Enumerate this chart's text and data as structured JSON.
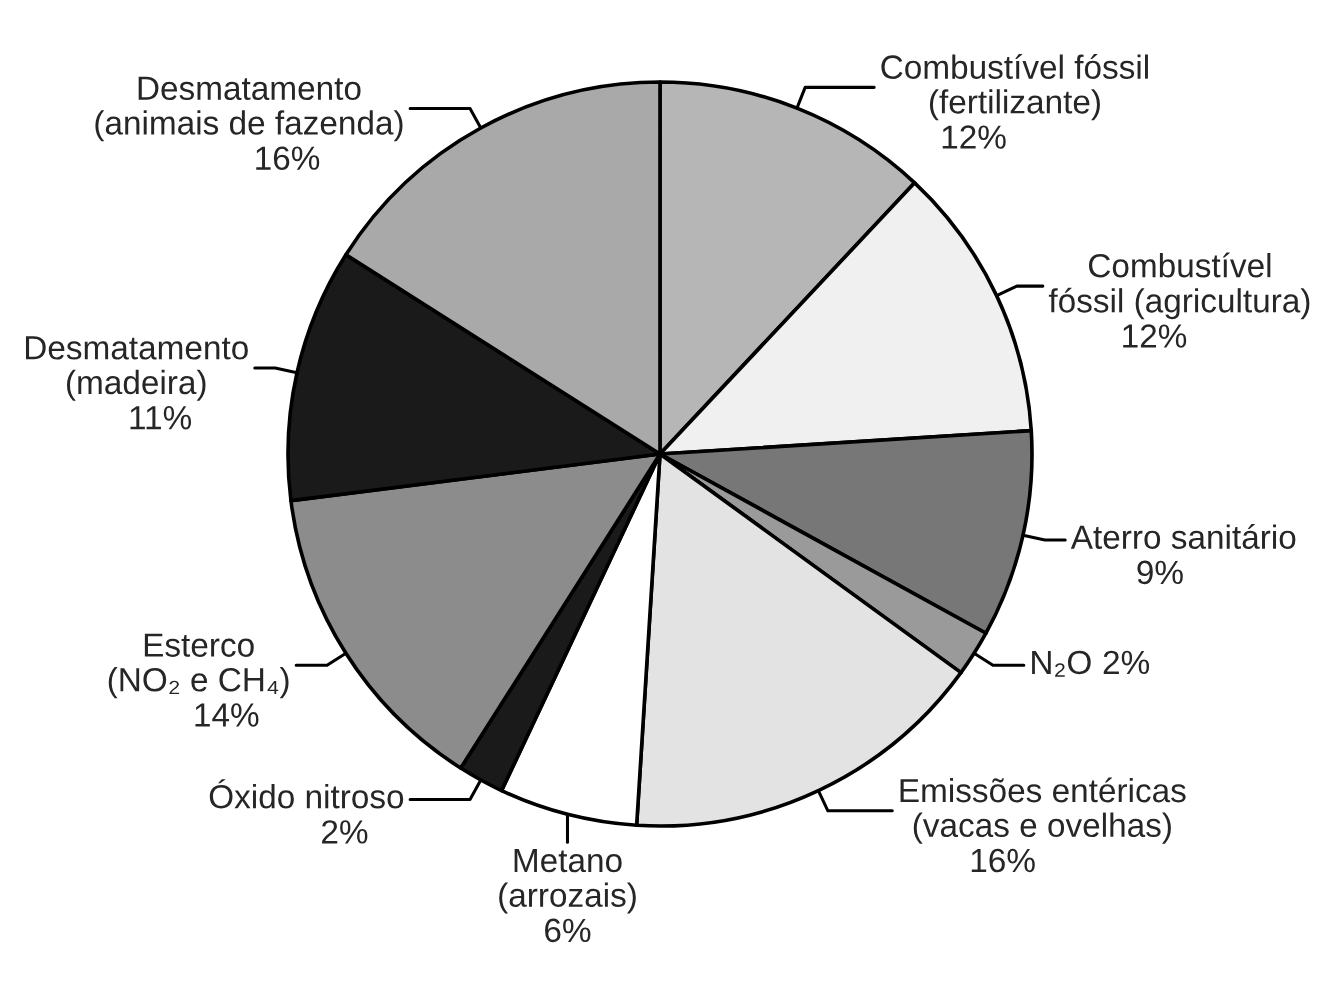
{
  "chart_data": {
    "type": "pie",
    "categories": [
      "Combustível fóssil\n(fertilizante)",
      "Combustível\nfóssil (agricultura)",
      "Aterro sanitário",
      "N₂O",
      "Emissões entéricas\n(vacas e ovelhas)",
      "Metano\n(arrozais)",
      "Óxido nitroso",
      "Esterco\n(NO₂ e CH₄)",
      "Desmatamento\n(madeira)",
      "Desmatamento\n(animais de fazenda)"
    ],
    "values": [
      12,
      12,
      9,
      2,
      16,
      6,
      2,
      14,
      11,
      16
    ],
    "value_labels": [
      "12%",
      "12%",
      "9%",
      "2%",
      "16%",
      "6%",
      "2%",
      "14%",
      "11%",
      "16%"
    ],
    "colors": [
      "#b6b6b6",
      "#f0f0f0",
      "#777777",
      "#9a9a9a",
      "#e3e3e3",
      "#ffffff",
      "#1a1a1a",
      "#8c8c8c",
      "#1a1a1a",
      "#a9a9a9"
    ]
  }
}
